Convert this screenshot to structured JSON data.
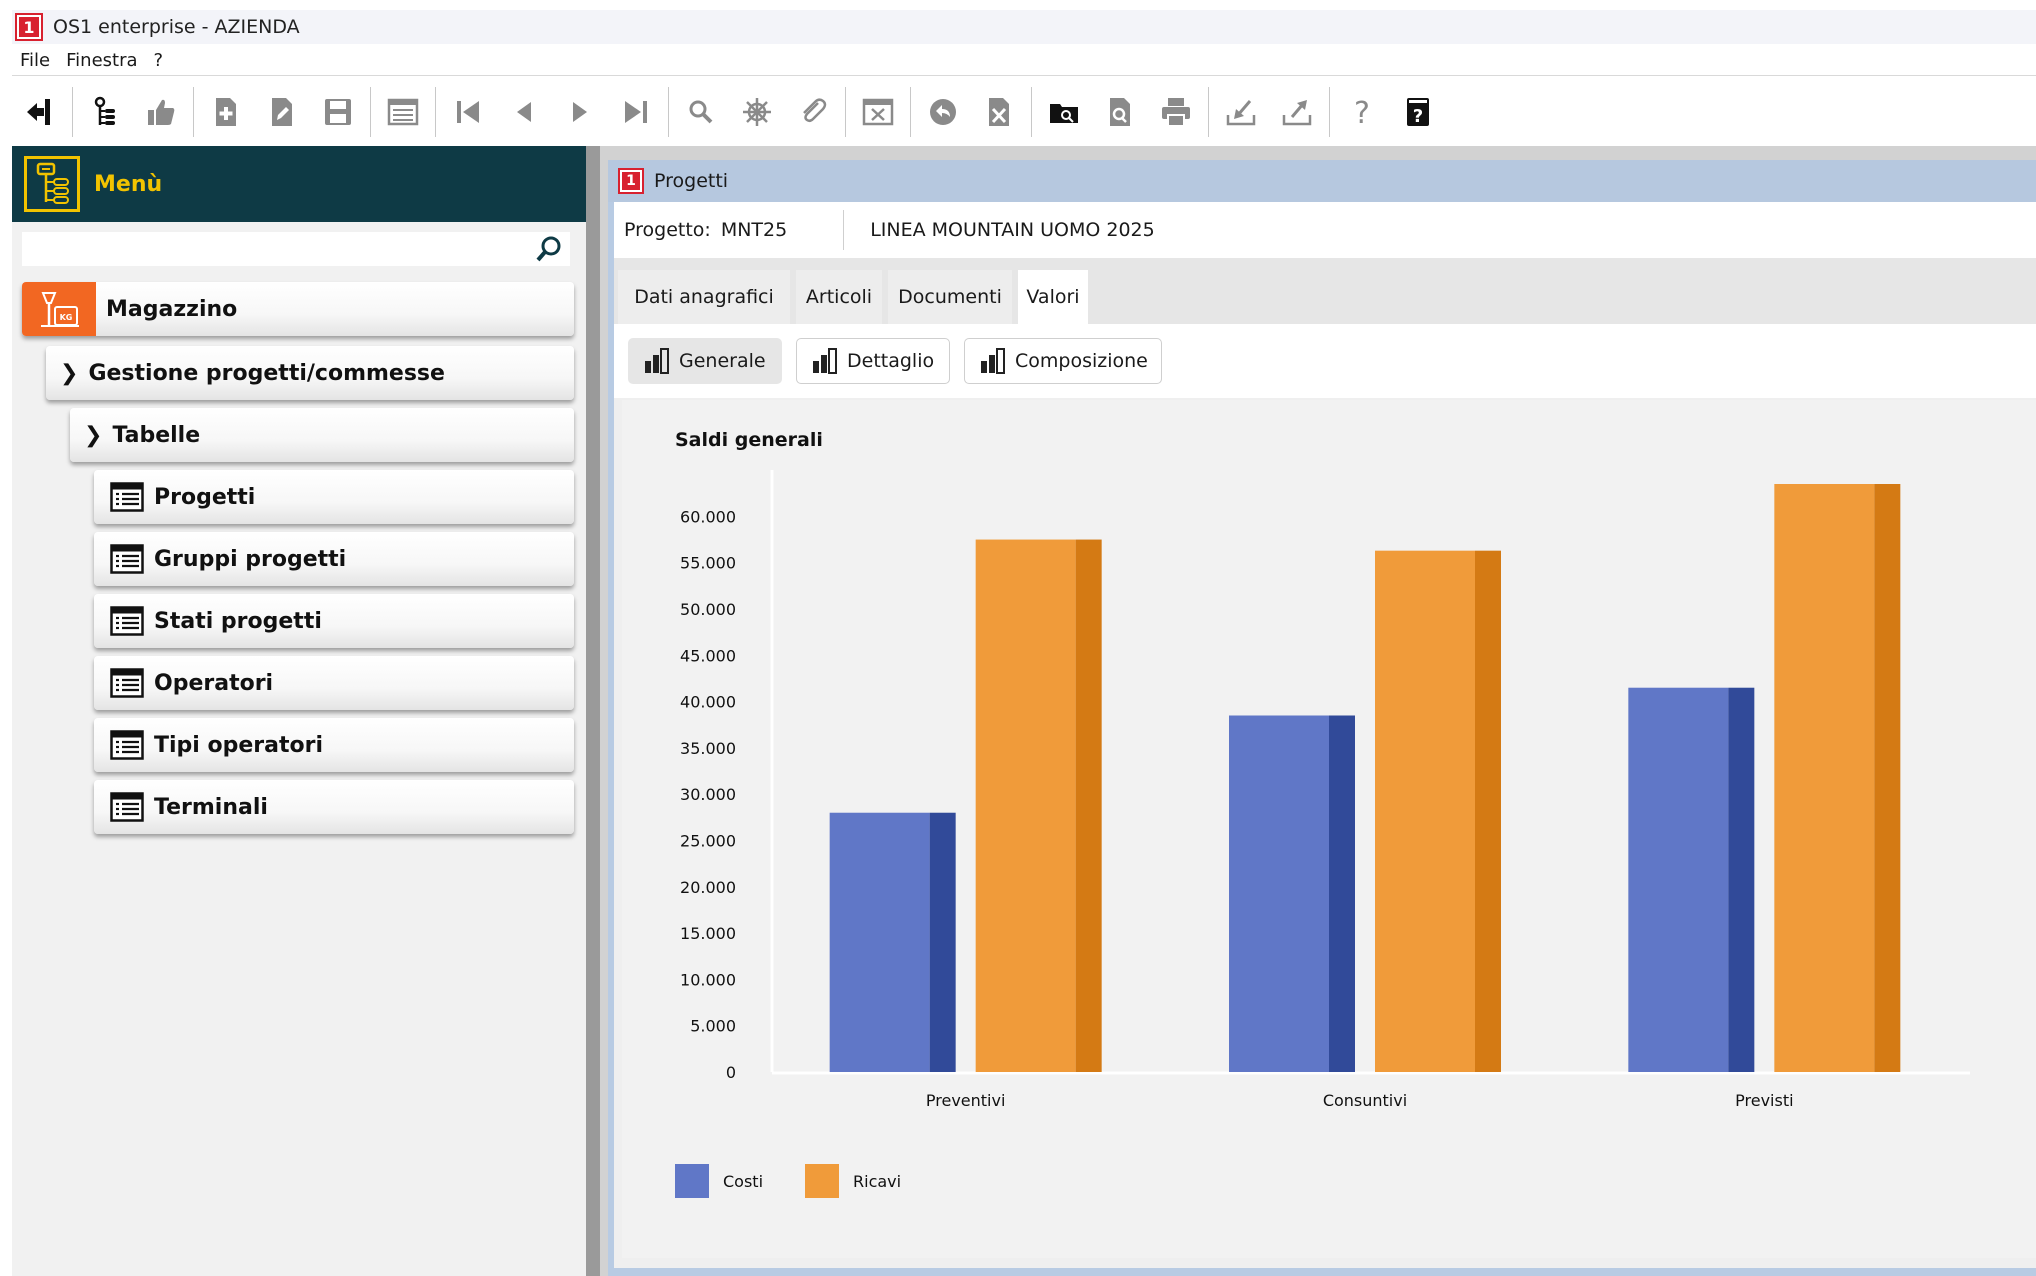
{
  "window": {
    "title": "OS1 enterprise - AZIENDA"
  },
  "menubar": {
    "items": [
      "File",
      "Finestra",
      "?"
    ]
  },
  "toolbar": {
    "icons": [
      "exit-icon",
      "tree-icon",
      "thumbs-up-icon",
      "new-document-icon",
      "edit-document-icon",
      "save-icon",
      "list-icon",
      "first-record-icon",
      "previous-record-icon",
      "next-record-icon",
      "last-record-icon",
      "search-icon",
      "helm-icon",
      "attachment-icon",
      "cancel-screen-icon",
      "undo-icon",
      "delete-icon",
      "open-folder-icon",
      "preview-icon",
      "print-icon",
      "import-icon",
      "export-icon",
      "help-icon",
      "manual-icon"
    ]
  },
  "sidebar": {
    "header": "Menù",
    "search_placeholder": "",
    "items": [
      {
        "label": "Magazzino",
        "level": 0
      },
      {
        "label": "Gestione progetti/commesse",
        "level": 1
      },
      {
        "label": "Tabelle",
        "level": 2
      },
      {
        "label": "Progetti",
        "level": 3
      },
      {
        "label": "Gruppi progetti",
        "level": 3
      },
      {
        "label": "Stati progetti",
        "level": 3
      },
      {
        "label": "Operatori",
        "level": 3
      },
      {
        "label": "Tipi operatori",
        "level": 3
      },
      {
        "label": "Terminali",
        "level": 3
      }
    ]
  },
  "form": {
    "title": "Progetti",
    "project_label": "Progetto:",
    "project_code": "MNT25",
    "project_desc": "LINEA MOUNTAIN UOMO 2025",
    "tabs": [
      {
        "label": "Dati anagrafici",
        "active": false
      },
      {
        "label": "Articoli",
        "active": false
      },
      {
        "label": "Documenti",
        "active": false
      },
      {
        "label": "Valori",
        "active": true
      }
    ],
    "subtabs": [
      {
        "label": "Generale",
        "active": true
      },
      {
        "label": "Dettaglio",
        "active": false
      },
      {
        "label": "Composizione",
        "active": false
      }
    ]
  },
  "chart_data": {
    "type": "bar",
    "title": "Saldi generali",
    "categories": [
      "Preventivi",
      "Consuntivi",
      "Previsti"
    ],
    "series": [
      {
        "name": "Costi",
        "values": [
          28000,
          38500,
          41500
        ],
        "color": "#6077c7",
        "shade": "#314a99"
      },
      {
        "name": "Ricavi",
        "values": [
          57500,
          56300,
          63500
        ],
        "color": "#f09b3a",
        "shade": "#d47a14"
      }
    ],
    "ylim": [
      0,
      63500
    ],
    "yticks": [
      "0",
      "5.000",
      "10.000",
      "15.000",
      "20.000",
      "25.000",
      "30.000",
      "35.000",
      "40.000",
      "45.000",
      "50.000",
      "55.000",
      "60.000"
    ],
    "ytick_values": [
      0,
      5000,
      10000,
      15000,
      20000,
      25000,
      30000,
      35000,
      40000,
      45000,
      50000,
      55000,
      60000
    ],
    "legend_position": "bottom-left",
    "grid": false
  }
}
